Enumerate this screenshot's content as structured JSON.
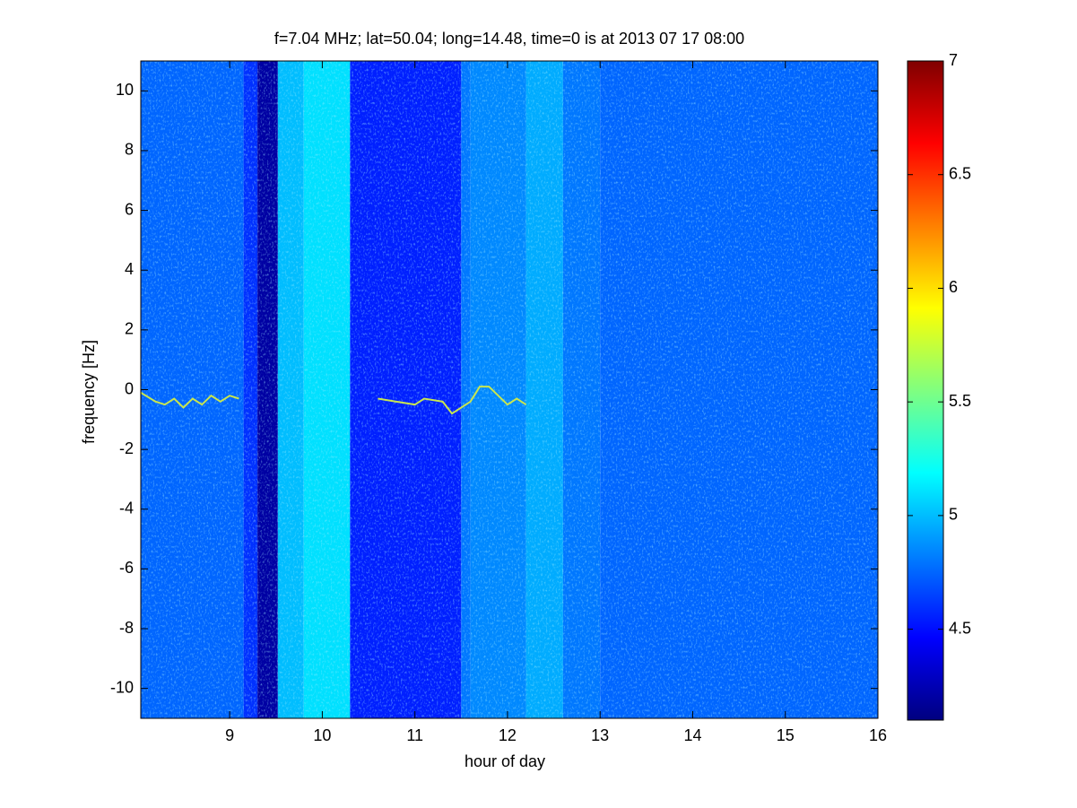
{
  "chart_data": {
    "type": "heatmap",
    "title": "f=7.04 MHz;  lat=50.04; long=14.48, time=0 is at 2013 07 17 08:00",
    "xlabel": "hour of day",
    "ylabel": "frequency [Hz]",
    "xlim": [
      8.04,
      16
    ],
    "ylim": [
      -11,
      11
    ],
    "xticks": [
      9,
      10,
      11,
      12,
      13,
      14,
      15,
      16
    ],
    "yticks": [
      -10,
      -8,
      -6,
      -4,
      -2,
      0,
      2,
      4,
      6,
      8,
      10
    ],
    "x_edges": [
      8.04,
      9.15,
      9.3,
      9.52,
      9.8,
      10.3,
      11.5,
      11.6,
      12.2,
      12.6,
      13,
      16
    ],
    "values": [
      4.75,
      4.6,
      4.2,
      5.0,
      5.1,
      4.55,
      4.8,
      4.85,
      4.95,
      4.8,
      4.75
    ],
    "trace": {
      "color": "#c8e650",
      "x": [
        8.04,
        8.2,
        8.3,
        8.4,
        8.5,
        8.6,
        8.7,
        8.8,
        8.9,
        9.0,
        9.1,
        null,
        10.6,
        10.8,
        11.0,
        11.1,
        11.3,
        11.4,
        11.6,
        11.7,
        11.8,
        12.0,
        12.1,
        12.2
      ],
      "values": [
        -0.1,
        -0.4,
        -0.5,
        -0.3,
        -0.6,
        -0.3,
        -0.5,
        -0.2,
        -0.4,
        -0.2,
        -0.3,
        null,
        -0.3,
        -0.4,
        -0.5,
        -0.3,
        -0.4,
        -0.8,
        -0.4,
        0.1,
        0.1,
        -0.5,
        -0.3,
        -0.5
      ]
    },
    "colormap": "jet",
    "clim": [
      4.1,
      7
    ],
    "cticks": [
      4.5,
      5,
      5.5,
      6,
      6.5,
      7
    ]
  }
}
